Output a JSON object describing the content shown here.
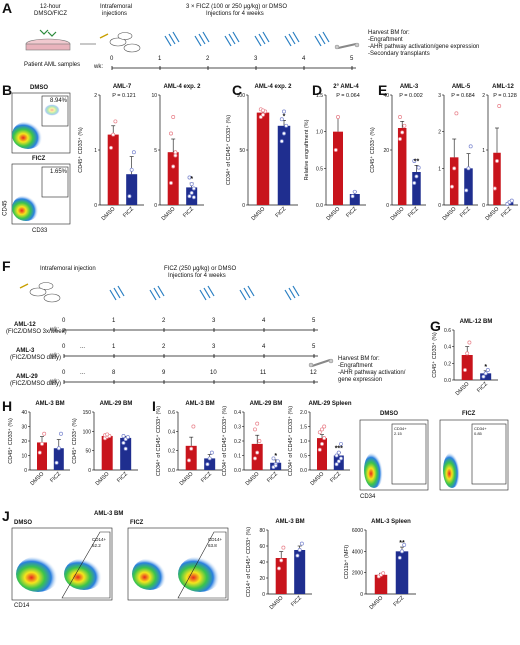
{
  "panels": {
    "A": {
      "letter": "A",
      "twelve_hour": "12-hour",
      "dmso_ficz": "DMSO/FICZ",
      "intrafemoral": "Intrafemoral",
      "injections": "injections",
      "treatment": "3 × FICZ (100 or 250 μg/kg) or DMSO",
      "treatment2": "Injections for 4 weeks",
      "patient": "Patient AML samples",
      "wk": "wk:",
      "ticks": [
        "0",
        "1",
        "2",
        "3",
        "4",
        "5"
      ],
      "harvest_title": "Harvest BM for:",
      "harvest_items": [
        "-Engraftment",
        "-AHR pathway activation/gene expression",
        "-Secondary transplants"
      ]
    },
    "B": {
      "letter": "B",
      "flow_top_label": "DMSO",
      "flow_top_pct": "8.94%",
      "flow_bottom_label": "FICZ",
      "flow_bottom_pct": "1.65%",
      "x_label": "CD33",
      "y_label": "CD45"
    },
    "C": {
      "letter": "C"
    },
    "D": {
      "letter": "D"
    },
    "E": {
      "letter": "E"
    },
    "F": {
      "letter": "F",
      "intrafemoral": "Intrafemoral injection",
      "treatment": "FICZ (250 μg/kg) or DMSO",
      "treatment2": "Injections for 4 weeks",
      "rows": [
        {
          "name": "AML-12",
          "sub": "(FICZ/DMSO 3x/week)",
          "ticks": [
            "0",
            "1",
            "2",
            "3",
            "4",
            "5"
          ],
          "gap": false
        },
        {
          "name": "AML-3",
          "sub": "(FICZ/DMSO daily)",
          "ticks": [
            "0",
            "1",
            "2",
            "3",
            "4",
            "5"
          ],
          "gap": true
        },
        {
          "name": "AML-29",
          "sub": "(FICZ/DMSO daily)",
          "ticks": [
            "0",
            "8",
            "9",
            "10",
            "11",
            "12"
          ],
          "gap": true
        }
      ],
      "wk": "wk:",
      "gap_mark": "...",
      "harvest_title": "Harvest BM for:",
      "harvest_items": [
        "-Engraftment",
        "-AHR pathway activation/",
        "gene expression"
      ]
    },
    "G": {
      "letter": "G"
    },
    "H": {
      "letter": "H"
    },
    "I": {
      "letter": "I",
      "flow_left": "DMSO",
      "flow_right": "FICZ",
      "x_label": "CD34",
      "gate_left": "CD34+",
      "gate_left_val": "2.15",
      "gate_right": "CD34+",
      "gate_right_val": "0.85"
    },
    "J": {
      "letter": "J",
      "flow_title": "AML-3 BM",
      "flow_left": "DMSO",
      "flow_right": "FICZ",
      "x_label": "CD14",
      "gate_left": "CD14+",
      "gate_left_val": "52.2",
      "gate_right": "CD14+",
      "gate_right_val": "63.8"
    }
  },
  "colors": {
    "dmso": "#c8141c",
    "ficz": "#1f2e8f",
    "dmso_dot": "#e8808a",
    "ficz_dot": "#7a86cf"
  },
  "chart_data": [
    {
      "id": "B1",
      "type": "bar",
      "title": "AML-7",
      "ylabel": "CD45⁺ CD33⁺ (%)",
      "categories": [
        "DMSO",
        "FICZ"
      ],
      "values": [
        1.6,
        0.7
      ],
      "errors": [
        0.2,
        0.4
      ],
      "ylim": [
        0,
        2.5
      ],
      "yticks": [
        "0",
        "1",
        "2"
      ],
      "stat": "P = 0.121",
      "sig": "",
      "dots": [
        [
          1.3,
          1.6,
          1.9
        ],
        [
          0.2,
          0.8,
          1.2
        ]
      ]
    },
    {
      "id": "B2",
      "type": "bar",
      "title": "AML-4 exp. 2",
      "ylabel": "",
      "categories": [
        "DMSO",
        "FICZ"
      ],
      "values": [
        4.8,
        1.6
      ],
      "errors": [
        1.2,
        0.4
      ],
      "ylim": [
        0,
        10
      ],
      "yticks": [
        "0",
        "5",
        "10"
      ],
      "stat": "",
      "sig": "*",
      "dots": [
        [
          2.0,
          3.5,
          4.5,
          6.5,
          8.0,
          4.8
        ],
        [
          0.8,
          1.1,
          1.5,
          2.5,
          1.9,
          0.7
        ]
      ]
    },
    {
      "id": "C",
      "type": "bar",
      "title": "AML-4 exp. 2",
      "ylabel": "CD34⁺ of CD45⁺ CD33⁺ (%)",
      "categories": [
        "DMSO",
        "FICZ"
      ],
      "values": [
        84,
        72
      ],
      "errors": [
        2,
        5
      ],
      "ylim": [
        0,
        100
      ],
      "yticks": [
        "0",
        "50",
        "100"
      ],
      "stat": "",
      "sig": "*",
      "dots": [
        [
          80,
          82,
          85,
          87,
          86
        ],
        [
          58,
          65,
          72,
          78,
          85
        ]
      ]
    },
    {
      "id": "D",
      "type": "bar",
      "title": "2° AML-4",
      "ylabel": "Relative engraftment (%)",
      "categories": [
        "DMSO",
        "FICZ"
      ],
      "values": [
        1.0,
        0.15
      ],
      "errors": [
        0.2,
        0.03
      ],
      "ylim": [
        0,
        1.5
      ],
      "yticks": [
        "0.0",
        "0.5",
        "1.0",
        "1.5"
      ],
      "stat": "P = 0.064",
      "sig": "",
      "dots": [
        [
          0.75,
          1.2
        ],
        [
          0.12,
          0.18
        ]
      ]
    },
    {
      "id": "E1",
      "type": "bar",
      "title": "AML-3",
      "ylabel": "CD45⁺ CD33⁺ (%)",
      "categories": [
        "DMSO",
        "FICZ"
      ],
      "values": [
        35,
        15
      ],
      "errors": [
        3,
        3
      ],
      "ylim": [
        0,
        50
      ],
      "yticks": [
        "0",
        "20",
        "40"
      ],
      "stat": "P = 0.002",
      "sig": "**",
      "dots": [
        [
          30,
          33,
          36,
          40
        ],
        [
          10,
          13,
          17,
          20
        ]
      ]
    },
    {
      "id": "E2",
      "type": "bar",
      "title": "AML-5",
      "ylabel": "",
      "categories": [
        "DMSO",
        "FICZ"
      ],
      "values": [
        1.3,
        1.0
      ],
      "errors": [
        0.5,
        0.4
      ],
      "ylim": [
        0,
        3
      ],
      "yticks": [
        "0",
        "1",
        "2",
        "3"
      ],
      "stat": "P = 0.684",
      "sig": "",
      "dots": [
        [
          0.5,
          1.0,
          2.5
        ],
        [
          0.4,
          1.0,
          1.6
        ]
      ]
    },
    {
      "id": "E3",
      "type": "bar",
      "title": "AML-12",
      "ylabel": "",
      "categories": [
        "DMSO",
        "FICZ"
      ],
      "values": [
        0.95,
        0.05
      ],
      "errors": [
        0.45,
        0.02
      ],
      "ylim": [
        0,
        2
      ],
      "yticks": [
        "0",
        "1",
        "2"
      ],
      "stat": "P = 0.128",
      "sig": "",
      "dots": [
        [
          0.3,
          0.8,
          1.8
        ],
        [
          0.02,
          0.05,
          0.08
        ]
      ]
    },
    {
      "id": "G",
      "type": "bar",
      "title": "AML-12 BM",
      "ylabel": "CD45⁺ CD33⁺ (%)",
      "categories": [
        "DMSO",
        "FICZ"
      ],
      "values": [
        0.3,
        0.08
      ],
      "errors": [
        0.1,
        0.03
      ],
      "ylim": [
        0,
        0.6
      ],
      "yticks": [
        "0.0",
        "0.2",
        "0.4",
        "0.6"
      ],
      "stat": "",
      "sig": "*",
      "dots": [
        [
          0.12,
          0.32,
          0.45
        ],
        [
          0.04,
          0.08,
          0.12
        ]
      ]
    },
    {
      "id": "H1",
      "type": "bar",
      "title": "AML-3 BM",
      "ylabel": "CD45⁺ CD33⁺ (%)",
      "categories": [
        "DMSO",
        "FICZ"
      ],
      "values": [
        19,
        15
      ],
      "errors": [
        4,
        6
      ],
      "ylim": [
        0,
        40
      ],
      "yticks": [
        "0",
        "10",
        "20",
        "30",
        "40"
      ],
      "stat": "",
      "sig": "",
      "dots": [
        [
          12,
          18,
          25
        ],
        [
          5,
          15,
          25
        ]
      ]
    },
    {
      "id": "H2",
      "type": "bar",
      "title": "AML-29 BM",
      "ylabel": "CD45⁺ CD33⁺ (%)",
      "categories": [
        "DMSO",
        "FICZ"
      ],
      "values": [
        88,
        83
      ],
      "errors": [
        3,
        4
      ],
      "ylim": [
        0,
        150
      ],
      "yticks": [
        "0",
        "50",
        "100",
        "150"
      ],
      "stat": "",
      "sig": "",
      "dots": [
        [
          82,
          86,
          88,
          90,
          92
        ],
        [
          70,
          80,
          85,
          88,
          55
        ]
      ]
    },
    {
      "id": "I1",
      "type": "bar",
      "title": "AML-3 BM",
      "ylabel": "CD34⁺ of CD45⁺ CD33⁺ (%)",
      "categories": [
        "DMSO",
        "FICZ"
      ],
      "values": [
        0.25,
        0.12
      ],
      "errors": [
        0.09,
        0.04
      ],
      "ylim": [
        0,
        0.6
      ],
      "yticks": [
        "0.0",
        "0.2",
        "0.4",
        "0.6"
      ],
      "stat": "",
      "sig": "",
      "dots": [
        [
          0.1,
          0.22,
          0.45
        ],
        [
          0.06,
          0.12,
          0.18
        ]
      ]
    },
    {
      "id": "I2",
      "type": "bar",
      "title": "AML-29 BM",
      "ylabel": "CD34⁺ of CD45⁺ CD33⁺ (%)",
      "categories": [
        "DMSO",
        "FICZ"
      ],
      "values": [
        0.18,
        0.05
      ],
      "errors": [
        0.06,
        0.02
      ],
      "ylim": [
        0,
        0.4
      ],
      "yticks": [
        "0.0",
        "0.1",
        "0.2",
        "0.3",
        "0.4"
      ],
      "stat": "",
      "sig": "*",
      "dots": [
        [
          0.08,
          0.12,
          0.2,
          0.28,
          0.32
        ],
        [
          0.02,
          0.04,
          0.06,
          0.08,
          0.03
        ]
      ]
    },
    {
      "id": "I3",
      "type": "bar",
      "title": "AML-29 Spleen",
      "ylabel": "CD34⁺ of CD45⁺ CD33⁺ (%)",
      "categories": [
        "DMSO",
        "FICZ"
      ],
      "values": [
        1.1,
        0.5
      ],
      "errors": [
        0.12,
        0.1
      ],
      "ylim": [
        0,
        2.0
      ],
      "yticks": [
        "0.0",
        "0.5",
        "1.0",
        "1.5",
        "2.0"
      ],
      "stat": "",
      "sig": "***",
      "dots": [
        [
          0.7,
          0.9,
          1.1,
          1.3,
          1.4,
          1.5
        ],
        [
          0.2,
          0.3,
          0.4,
          0.5,
          0.6,
          0.9
        ]
      ]
    },
    {
      "id": "J1",
      "type": "bar",
      "title": "AML-3 BM",
      "ylabel": "CD14⁺ of CD45⁺ CD33⁺ (%)",
      "categories": [
        "DMSO",
        "FICZ"
      ],
      "values": [
        45,
        55
      ],
      "errors": [
        8,
        5
      ],
      "ylim": [
        0,
        80
      ],
      "yticks": [
        "0",
        "20",
        "40",
        "60",
        "80"
      ],
      "stat": "",
      "sig": "",
      "dots": [
        [
          32,
          42,
          58
        ],
        [
          48,
          55,
          63
        ]
      ]
    },
    {
      "id": "J2",
      "type": "bar",
      "title": "AML-3 Spleen",
      "ylabel": "CD11b⁺ (MFI)",
      "categories": [
        "DMSO",
        "FICZ"
      ],
      "values": [
        1800,
        4000
      ],
      "errors": [
        150,
        400
      ],
      "ylim": [
        0,
        6000
      ],
      "yticks": [
        "0",
        "2000",
        "4000",
        "6000"
      ],
      "stat": "",
      "sig": "**",
      "dots": [
        [
          1650,
          1800,
          1950
        ],
        [
          3400,
          4000,
          4600
        ]
      ]
    }
  ]
}
